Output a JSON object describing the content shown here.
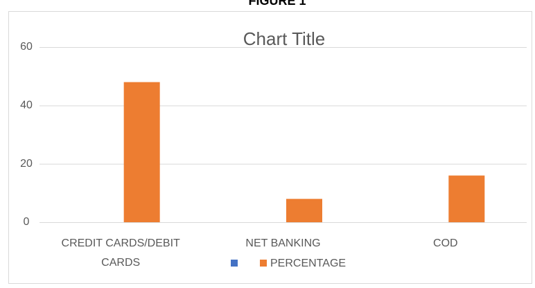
{
  "figure_label": "FIGURE 1",
  "chart_data": {
    "type": "bar",
    "title": "Chart Title",
    "categories": [
      "CREDIT CARDS/DEBIT CARDS",
      "NET BANKING",
      "COD"
    ],
    "series": [
      {
        "color": "#4472c4",
        "values": [
          0,
          0,
          0
        ]
      },
      {
        "name": "PERCENTAGE",
        "color": "#ed7d31",
        "values": [
          48,
          8,
          16
        ]
      }
    ],
    "ylim": [
      0,
      60
    ],
    "yticks": [
      0,
      20,
      40,
      60
    ],
    "grid": true,
    "legend": "bottom"
  }
}
